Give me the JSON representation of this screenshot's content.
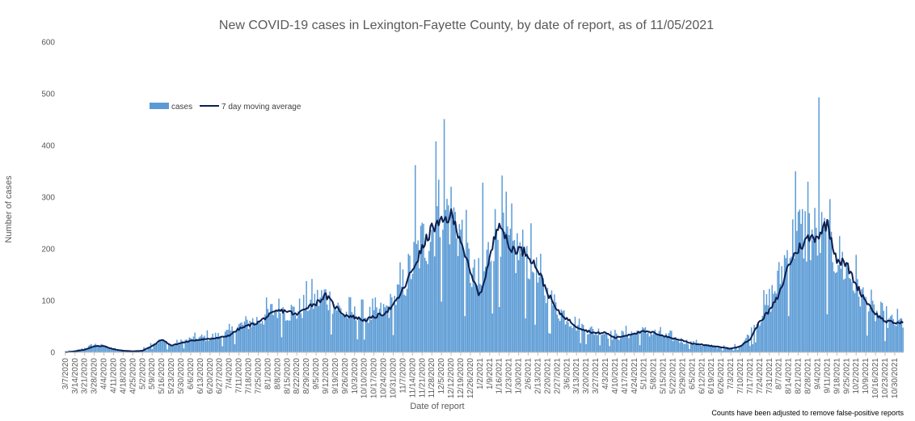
{
  "chart_data": {
    "type": "bar",
    "title": "New COVID-19 cases in Lexington-Fayette County, by date of report, as of 11/05/2021",
    "xlabel": "Date of report",
    "ylabel": "Number of cases",
    "note": "Counts have been adjusted to remove false-positive reports",
    "ylim": [
      0,
      600
    ],
    "yticks": [
      "0",
      "100",
      "200",
      "300",
      "400",
      "500",
      "600"
    ],
    "x_start": "3/7/2020",
    "x_end": "11/5/2021",
    "grid": false,
    "legend": {
      "position": "upper-left",
      "items": [
        "cases",
        "7 day moving average"
      ]
    },
    "colors": {
      "bars": "#5b9bd5",
      "line": "#0d1f4f"
    },
    "x_tick_labels": [
      "3/7/2020",
      "3/14/2020",
      "3/21/2020",
      "3/28/2020",
      "4/4/2020",
      "4/11/2020",
      "4/18/2020",
      "4/25/2020",
      "5/2/2020",
      "5/9/2020",
      "5/16/2020",
      "5/23/2020",
      "5/30/2020",
      "6/6/2020",
      "6/13/2020",
      "6/20/2020",
      "6/27/2020",
      "7/4/2020",
      "7/11/2020",
      "7/18/2020",
      "7/25/2020",
      "8/1/2020",
      "8/8/2020",
      "8/15/2020",
      "8/22/2020",
      "8/29/2020",
      "9/5/2020",
      "9/12/2020",
      "9/19/2020",
      "9/26/2020",
      "10/3/2020",
      "10/10/2020",
      "10/17/2020",
      "10/24/2020",
      "10/31/2020",
      "11/7/2020",
      "11/14/2020",
      "11/21/2020",
      "11/28/2020",
      "12/5/2020",
      "12/12/2020",
      "12/19/2020",
      "12/26/2020",
      "1/2/2021",
      "1/9/2021",
      "1/16/2021",
      "1/23/2021",
      "1/30/2021",
      "2/6/2021",
      "2/13/2021",
      "2/20/2021",
      "2/27/2021",
      "3/6/2021",
      "3/13/2021",
      "3/20/2021",
      "3/27/2021",
      "4/3/2021",
      "4/10/2021",
      "4/17/2021",
      "4/24/2021",
      "5/1/2021",
      "5/8/2021",
      "5/15/2021",
      "5/22/2021",
      "5/29/2021",
      "6/5/2021",
      "6/12/2021",
      "6/19/2021",
      "6/26/2021",
      "7/3/2021",
      "7/10/2021",
      "7/17/2021",
      "7/24/2021",
      "7/31/2021",
      "8/7/2021",
      "8/14/2021",
      "8/21/2021",
      "8/28/2021",
      "9/4/2021",
      "9/11/2021",
      "9/18/2021",
      "9/25/2021",
      "10/2/2021",
      "10/9/2021",
      "10/16/2021",
      "10/23/2021",
      "10/30/2021"
    ],
    "series": [
      {
        "name": "cases",
        "kind": "bar",
        "weekly_avg": [
          2,
          3,
          8,
          15,
          12,
          6,
          4,
          3,
          5,
          18,
          22,
          12,
          20,
          25,
          28,
          30,
          32,
          38,
          50,
          58,
          62,
          75,
          85,
          80,
          78,
          95,
          100,
          110,
          90,
          75,
          72,
          70,
          72,
          80,
          95,
          130,
          170,
          210,
          240,
          280,
          270,
          230,
          160,
          120,
          200,
          250,
          200,
          195,
          185,
          140,
          110,
          85,
          70,
          55,
          45,
          40,
          38,
          30,
          35,
          38,
          40,
          38,
          32,
          28,
          22,
          18,
          15,
          12,
          10,
          8,
          15,
          35,
          70,
          100,
          140,
          200,
          230,
          230,
          225,
          210,
          190,
          160,
          130,
          95,
          75,
          62,
          58
        ],
        "peaks": [
          {
            "x": "11/16/2020",
            "y": 362
          },
          {
            "x": "12/1/2020",
            "y": 408
          },
          {
            "x": "12/7/2020",
            "y": 451
          },
          {
            "x": "1/4/2021",
            "y": 328
          },
          {
            "x": "8/19/2021",
            "y": 350
          },
          {
            "x": "8/28/2021",
            "y": 330
          },
          {
            "x": "9/5/2021",
            "y": 493
          }
        ]
      },
      {
        "name": "7 day moving average",
        "kind": "line",
        "weekly_values": [
          0,
          2,
          5,
          12,
          12,
          6,
          3,
          2,
          3,
          12,
          25,
          13,
          18,
          22,
          25,
          26,
          28,
          33,
          45,
          52,
          58,
          70,
          80,
          80,
          72,
          88,
          95,
          110,
          88,
          72,
          68,
          62,
          68,
          75,
          90,
          120,
          160,
          200,
          240,
          250,
          265,
          220,
          150,
          110,
          180,
          260,
          200,
          200,
          190,
          160,
          115,
          80,
          65,
          50,
          42,
          37,
          38,
          28,
          32,
          37,
          40,
          38,
          32,
          27,
          23,
          17,
          15,
          12,
          10,
          7,
          12,
          25,
          60,
          80,
          110,
          170,
          200,
          220,
          225,
          250,
          180,
          170,
          130,
          100,
          75,
          60,
          57
        ]
      }
    ]
  }
}
